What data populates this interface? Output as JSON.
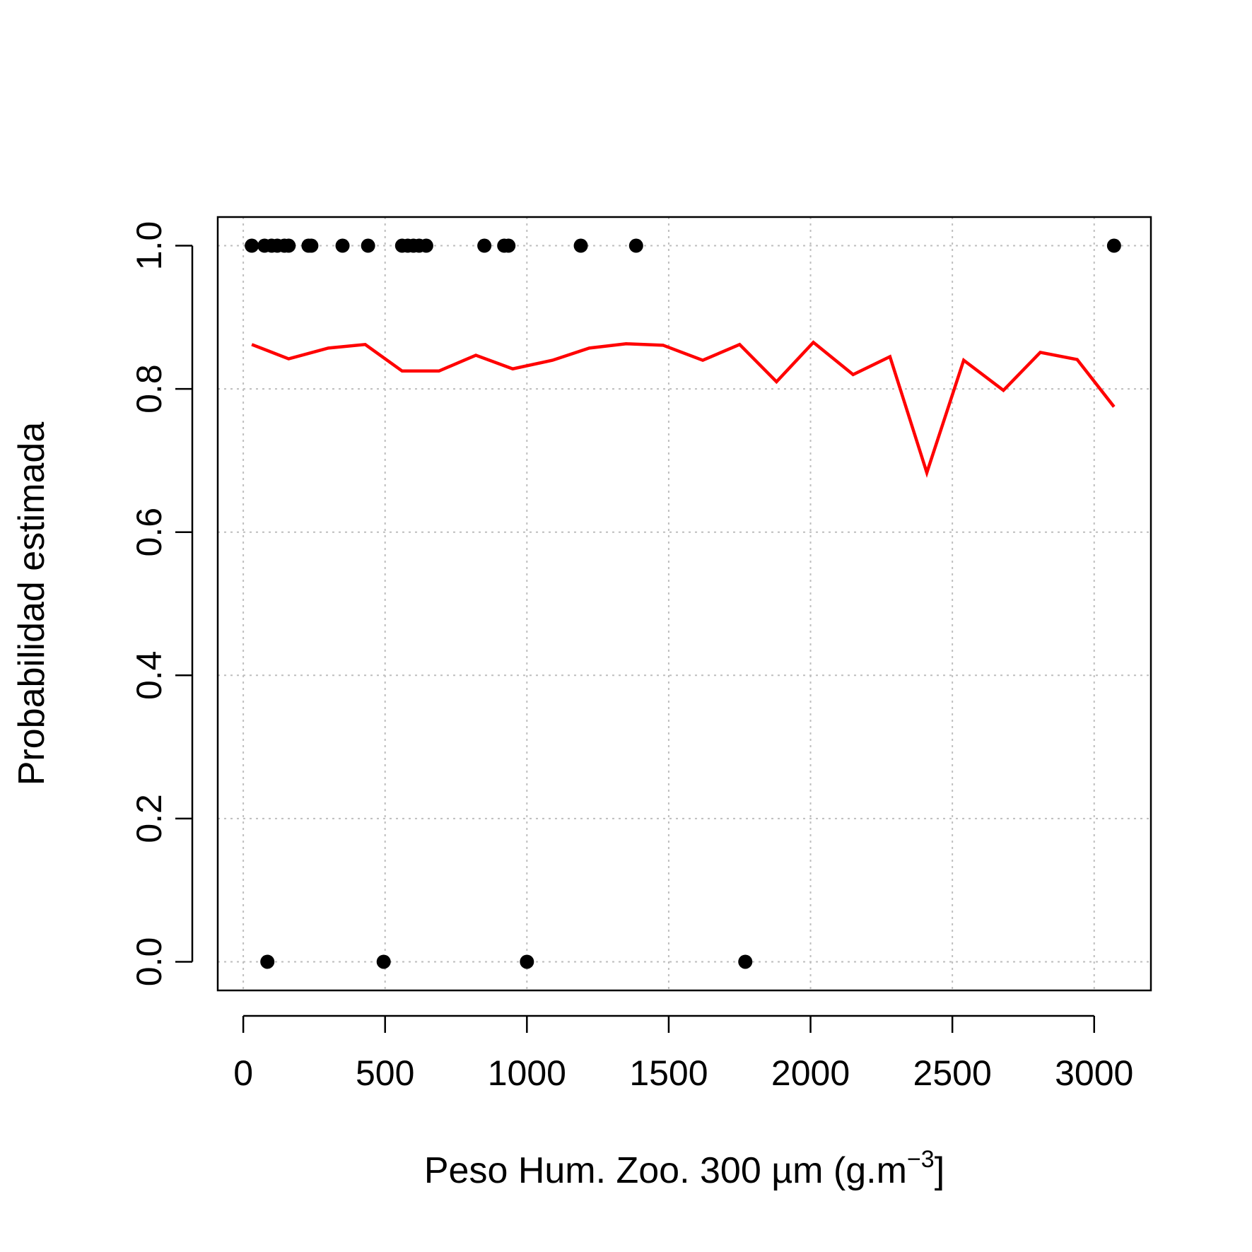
{
  "chart_data": {
    "type": "scatter",
    "title": "",
    "xlabel": "Peso Hum. Zoo. 300 µm (g.m",
    "xlabel_sup": "−3",
    "xlabel_end": "]",
    "ylabel": "Probabilidad estimada",
    "xlim": [
      -90,
      3200
    ],
    "ylim": [
      -0.04,
      1.04
    ],
    "x_ticks": [
      0,
      500,
      1000,
      1500,
      2000,
      2500,
      3000
    ],
    "x_tick_labels": [
      "0",
      "500",
      "1000",
      "1500",
      "2000",
      "2500",
      "3000"
    ],
    "y_ticks": [
      0.0,
      0.2,
      0.4,
      0.6,
      0.8,
      1.0
    ],
    "y_tick_labels": [
      "0.0",
      "0.2",
      "0.4",
      "0.6",
      "0.8",
      "1.0"
    ],
    "grid": true,
    "colors": {
      "points": "#000000",
      "line": "#ff0000",
      "grid": "#bebebe"
    },
    "series": [
      {
        "kind": "points",
        "x": [
          30,
          75,
          100,
          120,
          145,
          160,
          230,
          240,
          350,
          440,
          560,
          580,
          600,
          620,
          645,
          850,
          920,
          935,
          1190,
          1385,
          3070,
          85,
          495,
          1000,
          1770
        ],
        "y": [
          1,
          1,
          1,
          1,
          1,
          1,
          1,
          1,
          1,
          1,
          1,
          1,
          1,
          1,
          1,
          1,
          1,
          1,
          1,
          1,
          1,
          0,
          0,
          0,
          0
        ]
      },
      {
        "kind": "line",
        "x": [
          30,
          160,
          300,
          430,
          560,
          690,
          820,
          950,
          1090,
          1220,
          1350,
          1480,
          1620,
          1750,
          1880,
          2010,
          2150,
          2280,
          2410,
          2540,
          2680,
          2810,
          2940,
          3070
        ],
        "y": [
          0.862,
          0.842,
          0.857,
          0.862,
          0.825,
          0.825,
          0.847,
          0.828,
          0.84,
          0.857,
          0.863,
          0.861,
          0.84,
          0.862,
          0.81,
          0.865,
          0.82,
          0.845,
          0.683,
          0.84,
          0.798,
          0.851,
          0.841,
          0.775
        ]
      }
    ]
  }
}
